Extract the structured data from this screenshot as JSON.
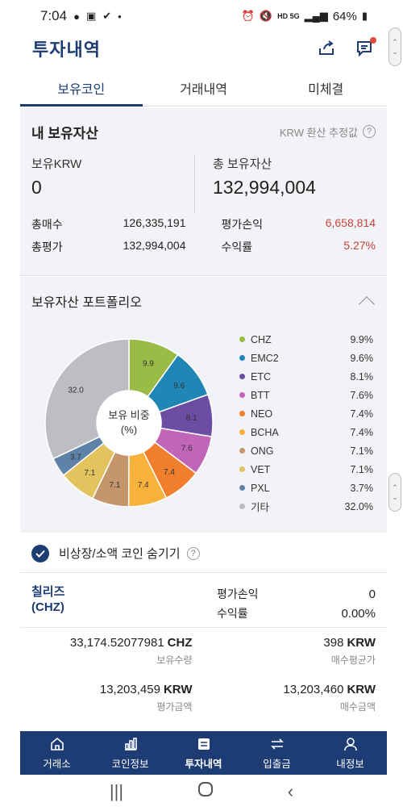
{
  "status_bar": {
    "time": "7:04",
    "battery": "64%",
    "network": "HD 5G"
  },
  "header": {
    "title": "투자내역"
  },
  "tabs": [
    {
      "label": "보유코인",
      "active": true
    },
    {
      "label": "거래내역",
      "active": false
    },
    {
      "label": "미체결",
      "active": false
    }
  ],
  "assets": {
    "title": "내 보유자산",
    "note": "KRW 환산 추정값",
    "krw_label": "보유KRW",
    "krw_value": "0",
    "total_label": "총 보유자산",
    "total_value": "132,994,004",
    "buy_total_label": "총매수",
    "buy_total_value": "126,335,191",
    "eval_total_label": "총평가",
    "eval_total_value": "132,994,004",
    "pnl_label": "평가손익",
    "pnl_value": "6,658,814",
    "roi_label": "수익률",
    "roi_value": "5.27%"
  },
  "portfolio": {
    "title": "보유자산 포트폴리오",
    "center_label_1": "보유 비중",
    "center_label_2": "(%)"
  },
  "chart_data": {
    "type": "pie",
    "categories": [
      "CHZ",
      "EMC2",
      "ETC",
      "BTT",
      "NEO",
      "BCHA",
      "ONG",
      "VET",
      "PXL",
      "기타"
    ],
    "values": [
      9.9,
      9.6,
      8.1,
      7.6,
      7.4,
      7.4,
      7.1,
      7.1,
      3.7,
      32.0
    ],
    "value_labels": [
      "9.9",
      "9.6",
      "8.1",
      "7.6",
      "7.4",
      "7.4",
      "7.1",
      "7.1",
      "3.7",
      "32.0"
    ],
    "percent_labels": [
      "9.9%",
      "9.6%",
      "8.1%",
      "7.6%",
      "7.4%",
      "7.4%",
      "7.1%",
      "7.1%",
      "3.7%",
      "32.0%"
    ],
    "colors": [
      "#9bbb47",
      "#1f86b6",
      "#6b4da3",
      "#c065b8",
      "#f07e2d",
      "#f7b23b",
      "#c5956b",
      "#e2c35e",
      "#5f83a8",
      "#bcbec2"
    ],
    "legend": "right"
  },
  "hide_toggle": {
    "label": "비상장/소액 코인 숨기기",
    "checked": true
  },
  "coin": {
    "name": "칠리즈",
    "symbol": "(CHZ)",
    "pnl_label": "평가손익",
    "pnl_value": "0",
    "roi_label": "수익률",
    "roi_value": "0.00%",
    "qty_value": "33,174.52077981",
    "qty_unit": "CHZ",
    "qty_label": "보유수량",
    "avg_value": "398",
    "avg_unit": "KRW",
    "avg_label": "매수평균가",
    "eval_value": "13,203,459",
    "eval_unit": "KRW",
    "eval_label": "평가금액",
    "buy_value": "13,203,460",
    "buy_unit": "KRW",
    "buy_label": "매수금액"
  },
  "bottom_nav": [
    {
      "label": "거래소",
      "icon": "home-icon",
      "active": false
    },
    {
      "label": "코인정보",
      "icon": "chart-icon",
      "active": false
    },
    {
      "label": "투자내역",
      "icon": "list-icon",
      "active": true
    },
    {
      "label": "입출금",
      "icon": "transfer-icon",
      "active": false
    },
    {
      "label": "내정보",
      "icon": "user-icon",
      "active": false
    }
  ]
}
